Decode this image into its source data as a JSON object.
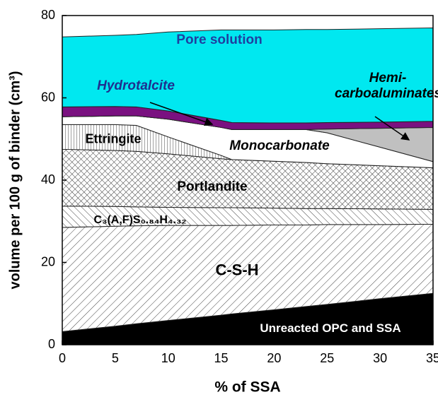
{
  "chart_data": {
    "type": "stacked-area",
    "x_label": "% of SSA",
    "y_label": "volume per 100 g of binder (cm³)",
    "x": [
      0,
      5,
      7,
      10,
      15,
      16,
      20,
      23,
      25,
      30,
      35
    ],
    "xlim": [
      0,
      35
    ],
    "xticks": [
      0,
      5,
      10,
      15,
      20,
      25,
      30,
      35
    ],
    "ylim": [
      0,
      80
    ],
    "yticks": [
      0,
      20,
      40,
      60,
      80
    ],
    "series": [
      {
        "name": "Unreacted OPC and SSA",
        "color": "#000000",
        "hatch": "solid",
        "values": [
          3.2,
          4.5,
          5.1,
          5.9,
          7.2,
          7.5,
          8.5,
          9.3,
          9.8,
          11.2,
          12.5
        ]
      },
      {
        "name": "C-S-H",
        "color": "#555555",
        "hatch": "/",
        "values": [
          25.3,
          24.3,
          23.8,
          23.1,
          21.8,
          21.5,
          20.6,
          19.8,
          19.4,
          18.0,
          16.8
        ]
      },
      {
        "name": "C₃(A,F)S₀.₈₄H₄.₃₂",
        "color": "#555555",
        "hatch": "\\",
        "values": [
          5.2,
          4.8,
          4.6,
          4.4,
          4.3,
          4.3,
          4.1,
          4.0,
          3.9,
          3.8,
          3.6
        ]
      },
      {
        "name": "Portlandite",
        "color": "#555555",
        "hatch": "x",
        "values": [
          13.8,
          13.6,
          13.5,
          13.0,
          11.9,
          11.7,
          11.4,
          11.2,
          10.9,
          10.5,
          10.1
        ]
      },
      {
        "name": "Ettringite",
        "color": "#555555",
        "hatch": "|",
        "values": [
          6.0,
          6.3,
          6.3,
          4.1,
          0.8,
          0,
          0,
          0,
          0,
          0,
          0
        ]
      },
      {
        "name": "Monocarbonate",
        "color": "#ffffff",
        "hatch": "solid",
        "values": [
          1.9,
          2.1,
          2.3,
          4.3,
          6.8,
          7.3,
          7.7,
          8.0,
          7.5,
          4.5,
          1.5
        ]
      },
      {
        "name": "Hemi-carboaluminates",
        "color": "#c0c0c0",
        "hatch": "solid",
        "values": [
          0,
          0,
          0,
          0,
          0,
          0,
          0,
          0,
          0.9,
          4.6,
          8.3
        ]
      },
      {
        "name": "Hydrotalcite",
        "color": "#7a1180",
        "hatch": "solid",
        "values": [
          2.4,
          2.3,
          2.2,
          2.0,
          1.7,
          1.7,
          1.6,
          1.6,
          1.6,
          1.5,
          1.5
        ]
      },
      {
        "name": "Pore solution",
        "color": "#00e8f0",
        "hatch": "solid",
        "values": [
          17.0,
          17.3,
          17.6,
          19.2,
          22.0,
          22.5,
          22.6,
          22.7,
          22.6,
          22.7,
          22.7
        ]
      }
    ]
  }
}
